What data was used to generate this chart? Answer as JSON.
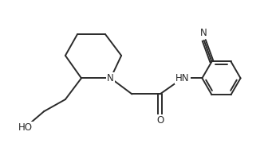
{
  "bg_color": "#ffffff",
  "line_color": "#2a2a2a",
  "line_width": 1.4,
  "font_size": 8.5,
  "figsize": [
    3.41,
    1.9
  ],
  "dpi": 100,
  "xlim": [
    0,
    10
  ],
  "ylim": [
    0,
    5.6
  ]
}
